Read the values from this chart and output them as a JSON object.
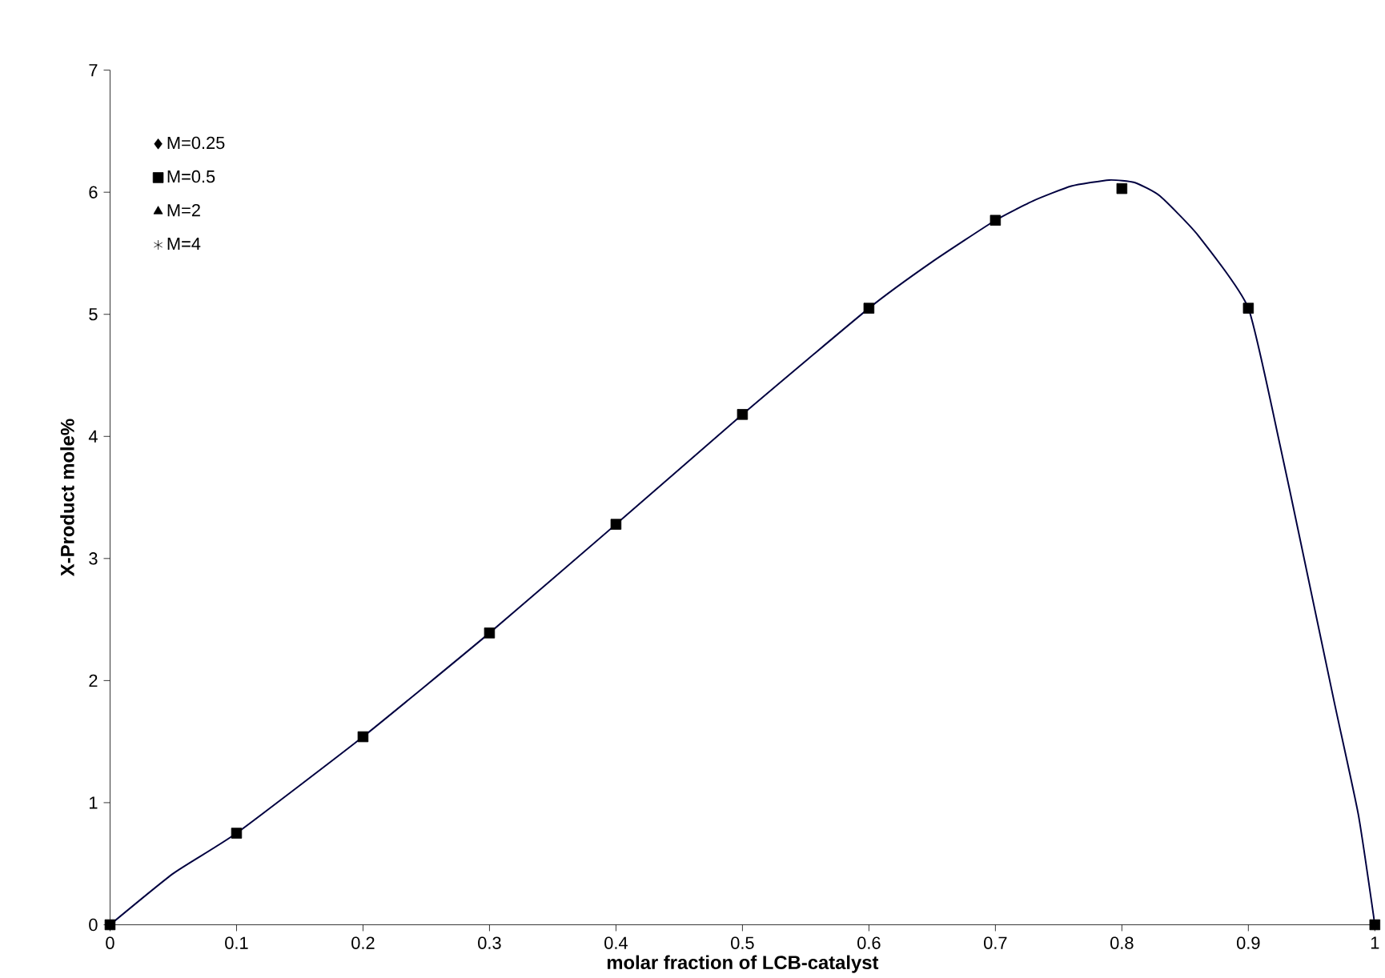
{
  "chart_data": {
    "type": "scatter",
    "xlabel": "molar fraction of LCB-catalyst",
    "ylabel": "X-Product mole%",
    "xlim": [
      0,
      1
    ],
    "ylim": [
      0,
      7
    ],
    "xticks": [
      0,
      0.1,
      0.2,
      0.3,
      0.4,
      0.5,
      0.6,
      0.7,
      0.8,
      0.9,
      1
    ],
    "yticks": [
      0,
      1,
      2,
      3,
      4,
      5,
      6,
      7
    ],
    "legend": "top left",
    "grid": false,
    "x": [
      0,
      0.1,
      0.2,
      0.3,
      0.4,
      0.5,
      0.6,
      0.7,
      0.8,
      0.9,
      1
    ],
    "series": [
      {
        "name": "M=0.25",
        "color": "#000000",
        "marker": "diamond",
        "values": [
          null,
          null,
          null,
          null,
          null,
          null,
          null,
          null,
          null,
          null,
          null
        ]
      },
      {
        "name": "M=0.5",
        "color": "#000000",
        "marker": "square",
        "values": [
          0,
          0.75,
          1.54,
          2.39,
          3.28,
          4.18,
          5.05,
          5.77,
          6.03,
          5.05,
          0
        ]
      },
      {
        "name": "M=2",
        "color": "#000000",
        "marker": "triangle",
        "values": [
          null,
          null,
          null,
          null,
          null,
          null,
          null,
          null,
          null,
          null,
          null
        ]
      },
      {
        "name": "M=4",
        "color": "#000000",
        "marker": "star",
        "values": [
          null,
          null,
          null,
          null,
          null,
          null,
          null,
          null,
          null,
          null,
          null
        ]
      },
      {
        "type": "line",
        "color": "#000040",
        "marker": "none",
        "line_style": "solid",
        "x": [
          0,
          0.05,
          0.1,
          0.2,
          0.3,
          0.4,
          0.5,
          0.6,
          0.65,
          0.7,
          0.73,
          0.76,
          0.79,
          0.81,
          0.83,
          0.86,
          0.9,
          0.925,
          0.94,
          0.968,
          0.987,
          1
        ],
        "values": [
          0,
          0.42,
          0.75,
          1.54,
          2.39,
          3.28,
          4.18,
          5.05,
          5.43,
          5.77,
          5.93,
          6.05,
          6.1,
          6.08,
          5.97,
          5.65,
          5.05,
          3.93,
          3.2,
          1.82,
          0.9,
          0
        ]
      }
    ]
  }
}
